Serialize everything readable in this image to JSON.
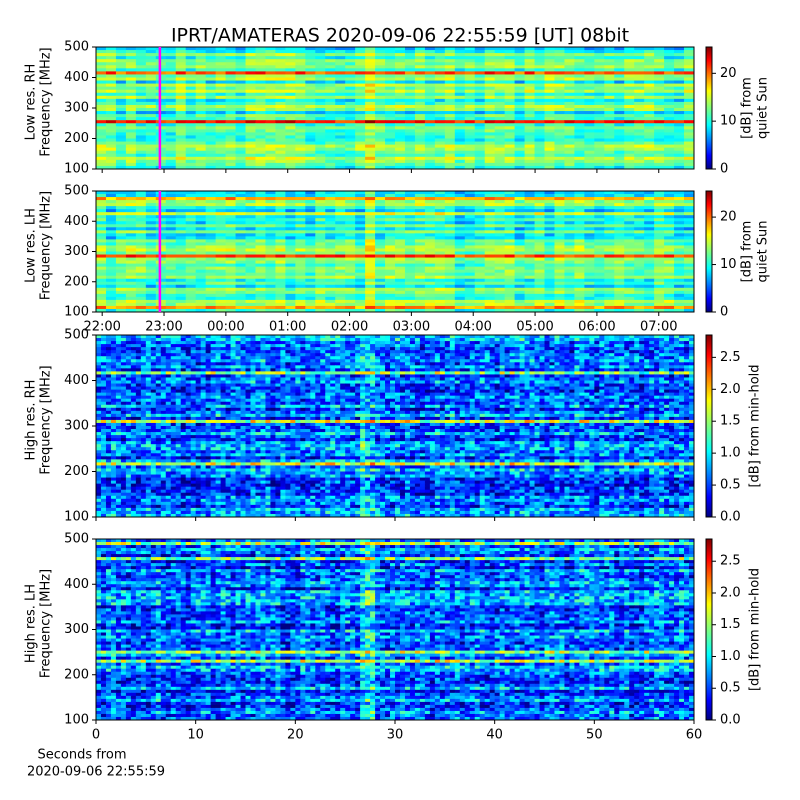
{
  "title": "IPRT/AMATERAS 2020-09-06 22:55:59 [UT]   08bit",
  "chart_data": [
    {
      "type": "heatmap",
      "ylabel": [
        "Low res. RH",
        "Frequency [MHz]"
      ],
      "xlim": [
        21.9,
        31.57
      ],
      "ylim": [
        100,
        500
      ],
      "yticks": [
        100,
        200,
        300,
        400,
        500
      ],
      "marker": 22.933,
      "marker_color": "#ff00ff",
      "colorbar_label": [
        "[dB] from",
        "quiet Sun"
      ],
      "clim": [
        0,
        25.5
      ],
      "cticks": [
        0,
        10,
        20
      ]
    },
    {
      "type": "heatmap",
      "ylabel": [
        "Low res. LH",
        "Frequency [MHz]"
      ],
      "xlim": [
        21.9,
        31.57
      ],
      "ylim": [
        100,
        500
      ],
      "yticks": [
        100,
        200,
        300,
        400,
        500
      ],
      "xticks": [
        {
          "value": 22,
          "label": "22:00"
        },
        {
          "value": 23,
          "label": "23:00"
        },
        {
          "value": 24,
          "label": "00:00"
        },
        {
          "value": 25,
          "label": "01:00"
        },
        {
          "value": 26,
          "label": "02:00"
        },
        {
          "value": 27,
          "label": "03:00"
        },
        {
          "value": 28,
          "label": "04:00"
        },
        {
          "value": 29,
          "label": "05:00"
        },
        {
          "value": 30,
          "label": "06:00"
        },
        {
          "value": 31,
          "label": "07:00"
        }
      ],
      "marker": 22.933,
      "marker_color": "#ff00ff",
      "colorbar_label": [
        "[dB] from",
        "quiet Sun"
      ],
      "clim": [
        0,
        25.5
      ],
      "cticks": [
        0,
        10,
        20
      ]
    },
    {
      "type": "heatmap",
      "ylabel": [
        "High res. RH",
        "Frequency [MHz]"
      ],
      "xlim": [
        0,
        60
      ],
      "ylim": [
        100,
        500
      ],
      "yticks": [
        100,
        200,
        300,
        400,
        500
      ],
      "colorbar_label": [
        "[dB] from min-hold"
      ],
      "clim": [
        0,
        2.85
      ],
      "cticks": [
        {
          "value": 0,
          "label": "0.0"
        },
        0.5,
        {
          "value": 1,
          "label": "1.0"
        },
        1.5,
        {
          "value": 2,
          "label": "2.0"
        },
        2.5
      ]
    },
    {
      "type": "heatmap",
      "ylabel": [
        "High res. LH",
        "Frequency [MHz]"
      ],
      "xlim": [
        0,
        60
      ],
      "ylim": [
        100,
        500
      ],
      "yticks": [
        100,
        200,
        300,
        400,
        500
      ],
      "xticks": [
        0,
        10,
        20,
        30,
        40,
        50,
        60
      ],
      "xlabel": [
        "Seconds from",
        "2020-09-06 22:55:59"
      ],
      "colorbar_label": [
        "[dB] from min-hold"
      ],
      "clim": [
        0,
        2.85
      ],
      "cticks": [
        {
          "value": 0,
          "label": "0.0"
        },
        0.5,
        {
          "value": 1,
          "label": "1.0"
        },
        1.5,
        {
          "value": 2,
          "label": "2.0"
        },
        2.5
      ]
    }
  ]
}
